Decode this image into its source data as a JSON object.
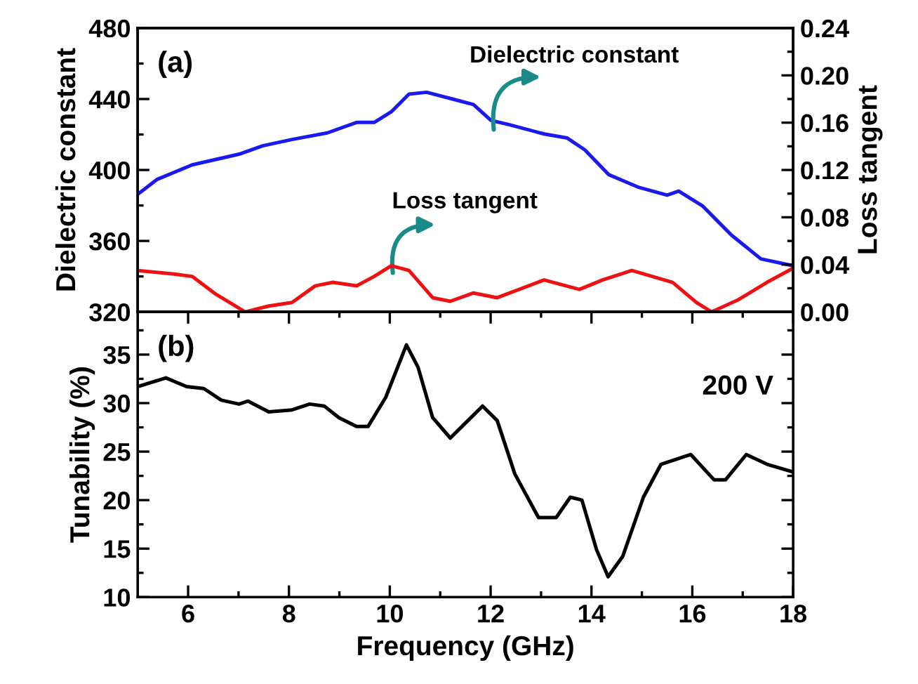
{
  "chart_data": [
    {
      "type": "line",
      "xlim": [
        5,
        18
      ],
      "xticks": [
        {
          "value": 6,
          "label": null
        },
        {
          "value": 7,
          "label": null
        },
        {
          "value": 8,
          "label": null
        },
        {
          "value": 9,
          "label": null
        },
        {
          "value": 10,
          "label": null
        },
        {
          "value": 11,
          "label": null
        },
        {
          "value": 12,
          "label": null
        },
        {
          "value": 13,
          "label": null
        },
        {
          "value": 14,
          "label": null
        },
        {
          "value": 15,
          "label": null
        },
        {
          "value": 16,
          "label": null
        },
        {
          "value": 17,
          "label": null
        }
      ],
      "ylim": [
        320,
        480
      ],
      "yticks": [
        320,
        {
          "value": 340,
          "label": null
        },
        360,
        {
          "value": 380,
          "label": null
        },
        400,
        {
          "value": 420,
          "label": null
        },
        440,
        {
          "value": 460,
          "label": null
        },
        480
      ],
      "y2lim": [
        0,
        0.24
      ],
      "y2ticks": [
        {
          "value": 0,
          "label": "0.00"
        },
        {
          "value": 0.02,
          "label": null
        },
        {
          "value": 0.04,
          "label": "0.04"
        },
        {
          "value": 0.06,
          "label": null
        },
        {
          "value": 0.08,
          "label": "0.08"
        },
        {
          "value": 0.1,
          "label": null
        },
        {
          "value": 0.12,
          "label": "0.12"
        },
        {
          "value": 0.14,
          "label": null
        },
        {
          "value": 0.16,
          "label": "0.16"
        },
        {
          "value": 0.18,
          "label": null
        },
        {
          "value": 0.2,
          "label": "0.20"
        },
        {
          "value": 0.22,
          "label": null
        },
        {
          "value": 0.24,
          "label": "0.24"
        }
      ],
      "ylabel": "Dielectric constant",
      "y2label": "Loss tangent",
      "tick_labels": "y",
      "grid": false,
      "legend": false,
      "marker": "none",
      "line_style": "solid",
      "series": [
        {
          "color": "#1a1aee",
          "x": [
            5.0,
            5.38,
            6.08,
            7.01,
            7.48,
            8.06,
            8.76,
            9.34,
            9.69,
            10.03,
            10.38,
            10.73,
            11.31,
            11.66,
            12.01,
            12.36,
            13.06,
            13.52,
            13.87,
            14.34,
            14.92,
            15.5,
            15.73,
            16.2,
            16.78,
            17.36,
            18.0
          ],
          "values": [
            386.3,
            394.6,
            402.9,
            408.9,
            413.6,
            417.2,
            420.9,
            426.8,
            426.8,
            432.8,
            442.8,
            443.8,
            439.5,
            436.9,
            427.9,
            425.6,
            420.3,
            418.0,
            411.3,
            397.4,
            390.4,
            385.8,
            388.1,
            379.8,
            363.2,
            349.9,
            346.0
          ]
        },
        {
          "color": "#ee1111",
          "axis": "y2",
          "x": [
            5.0,
            5.73,
            6.08,
            6.55,
            7.13,
            7.6,
            8.06,
            8.52,
            8.87,
            9.34,
            9.69,
            10.03,
            10.38,
            10.85,
            11.2,
            11.66,
            12.13,
            13.06,
            13.76,
            14.22,
            14.8,
            15.61,
            16.08,
            16.38,
            16.9,
            17.48,
            18.0
          ],
          "values": [
            0.035,
            0.032,
            0.03,
            0.015,
            0.0,
            0.005,
            0.008,
            0.022,
            0.025,
            0.022,
            0.03,
            0.039,
            0.035,
            0.012,
            0.009,
            0.016,
            0.012,
            0.027,
            0.019,
            0.027,
            0.035,
            0.025,
            0.008,
            0.0,
            0.01,
            0.025,
            0.037
          ]
        }
      ],
      "annotations": [
        "(a)",
        "Dielectric constant",
        "Loss tangent"
      ]
    },
    {
      "type": "line",
      "xlim": [
        5,
        18
      ],
      "xticks": [
        6,
        {
          "value": 7,
          "label": null
        },
        8,
        {
          "value": 9,
          "label": null
        },
        10,
        {
          "value": 11,
          "label": null
        },
        12,
        {
          "value": 13,
          "label": null
        },
        14,
        {
          "value": 15,
          "label": null
        },
        16,
        {
          "value": 17,
          "label": null
        },
        18
      ],
      "ylim": [
        10,
        39.4
      ],
      "yticks": [
        10,
        {
          "value": 12.5,
          "label": null
        },
        15,
        {
          "value": 17.5,
          "label": null
        },
        20,
        {
          "value": 22.5,
          "label": null
        },
        25,
        {
          "value": 27.5,
          "label": null
        },
        30,
        {
          "value": 32.5,
          "label": null
        },
        35,
        {
          "value": 37.5,
          "label": null
        }
      ],
      "xlabel": "Frequency (GHz)",
      "ylabel": "Tunability (%)",
      "grid": false,
      "legend": false,
      "marker": "none",
      "line_style": "solid",
      "series": [
        {
          "color": "#000000",
          "x": [
            5.0,
            5.56,
            5.97,
            6.31,
            6.66,
            7.01,
            7.19,
            7.6,
            8.06,
            8.41,
            8.7,
            8.99,
            9.34,
            9.57,
            9.92,
            10.33,
            10.56,
            10.85,
            11.2,
            11.55,
            11.84,
            12.13,
            12.48,
            12.95,
            13.3,
            13.58,
            13.81,
            14.1,
            14.33,
            14.62,
            15.03,
            15.38,
            15.97,
            16.43,
            16.66,
            17.07,
            17.48,
            18.0
          ],
          "values": [
            31.7,
            32.6,
            31.7,
            31.5,
            30.3,
            29.9,
            30.2,
            29.1,
            29.3,
            29.9,
            29.7,
            28.5,
            27.6,
            27.6,
            30.6,
            36.0,
            33.7,
            28.5,
            26.4,
            28.2,
            29.7,
            28.2,
            22.7,
            18.2,
            18.2,
            20.3,
            20.0,
            14.9,
            12.1,
            14.2,
            20.3,
            23.7,
            24.7,
            22.1,
            22.1,
            24.7,
            23.7,
            22.9
          ]
        }
      ],
      "annotations": [
        "(b)",
        "200 V"
      ]
    }
  ]
}
